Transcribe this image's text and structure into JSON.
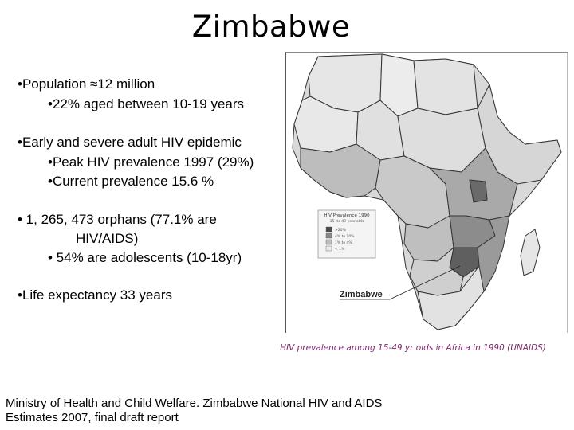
{
  "title": "Zimbabwe",
  "bullets": [
    "•Population ≈12 million",
    "•22% aged between 10-19 years",
    "•Early and severe adult HIV epidemic",
    "•Peak HIV prevalence 1997 (29%)",
    "•Current prevalence 15.6 %",
    "• 1, 265, 473 orphans (77.1% are",
    "HIV/AIDS)",
    "• 54% are adolescents (10-18yr)",
    "•Life expectancy 33 years"
  ],
  "map": {
    "legend_title": "HIV Prevalence 1990",
    "legend_subtitle": "15- to 49-year olds",
    "legend_items": [
      {
        "label": ">20%",
        "color": "#4a4a4a"
      },
      {
        "label": "4% to 10%",
        "color": "#8a8a8a"
      },
      {
        "label": "1% to 4%",
        "color": "#bdbdbd"
      },
      {
        "label": "< 1%",
        "color": "#ececec"
      }
    ],
    "callout_label": "Zimbabwe",
    "colors": {
      "high": "#5f5f5f",
      "mid": "#8c8c8c",
      "low": "#bfbfbf",
      "verylow": "#e6e6e6",
      "border": "#333333"
    }
  },
  "caption": "HIV prevalence among 15-49 yr olds in Africa in 1990 (UNAIDS)",
  "source": {
    "line1": "Ministry of Health and Child Welfare. Zimbabwe National HIV and AIDS",
    "line2": "Estimates 2007, final draft report"
  }
}
